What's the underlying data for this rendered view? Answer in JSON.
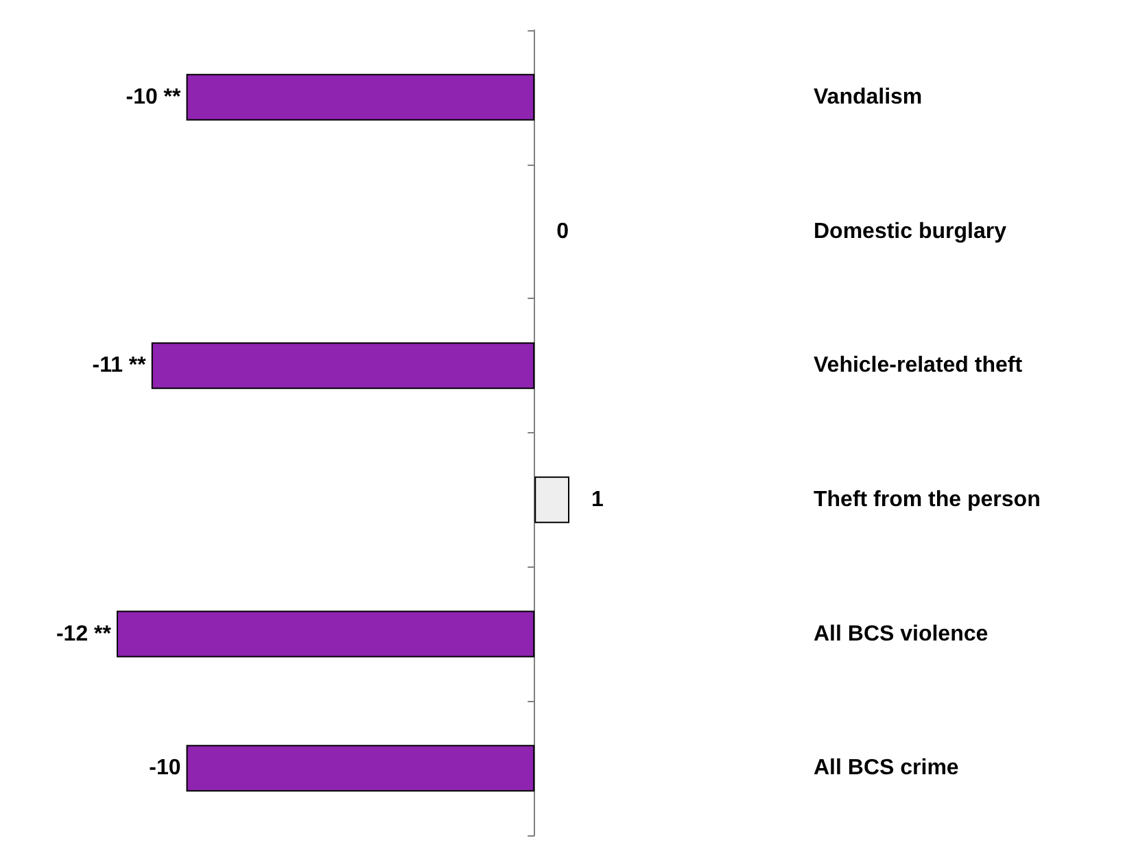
{
  "chart_data": {
    "type": "bar",
    "orientation": "horizontal",
    "categories": [
      "Vandalism",
      "Domestic burglary",
      "Vehicle-related theft",
      "Theft from the person",
      "All BCS violence",
      "All BCS crime"
    ],
    "values": [
      -10,
      0,
      -11,
      1,
      -12,
      -10
    ],
    "value_labels": [
      "-10 **",
      "0",
      "-11 **",
      "1",
      "-12 **",
      "-10"
    ],
    "colors": [
      "#8e24b0",
      "#eeeeee",
      "#8e24b0",
      "#eeeeee",
      "#8e24b0",
      "#8e24b0"
    ],
    "tick_labels": "y",
    "grid": false
  }
}
